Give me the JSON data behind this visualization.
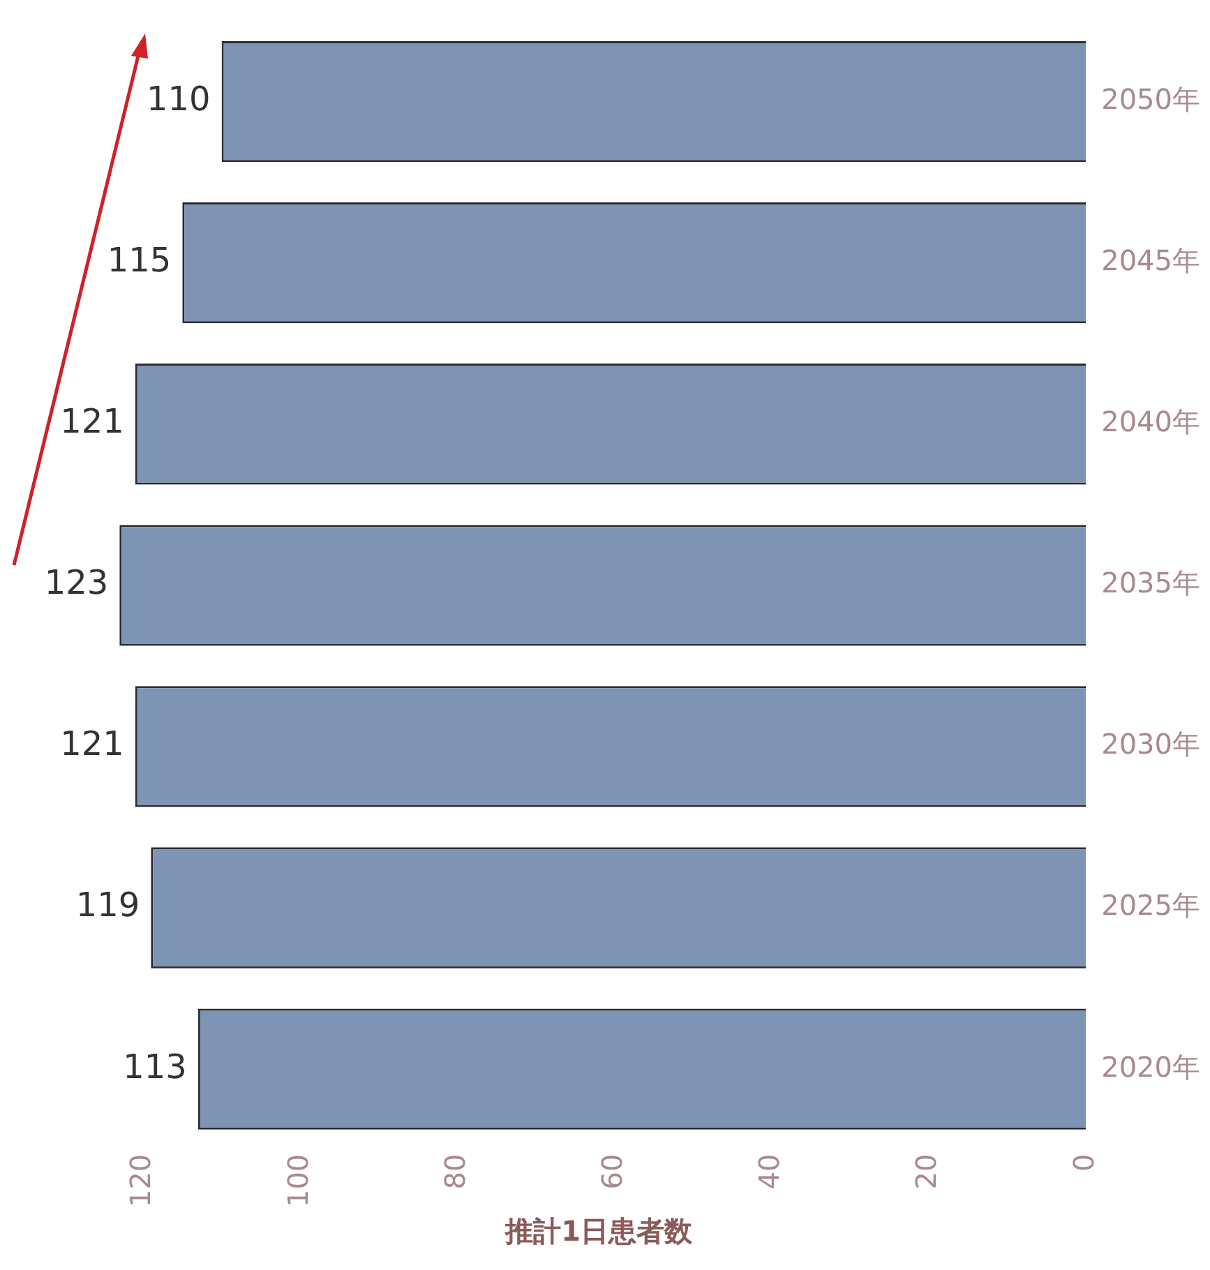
{
  "chart_data": {
    "type": "bar",
    "orientation": "horizontal",
    "xlabel": "推計1日患者数",
    "categories": [
      "2050年",
      "2045年",
      "2040年",
      "2035年",
      "2030年",
      "2025年",
      "2020年"
    ],
    "values": [
      110,
      115,
      121,
      123,
      121,
      119,
      113
    ],
    "color": "#7e94b5",
    "xlim": [
      124,
      0
    ],
    "xticks": [
      0,
      20,
      40,
      60,
      80,
      100,
      120
    ],
    "data_labels": true,
    "grid": false,
    "legend": false
  }
}
